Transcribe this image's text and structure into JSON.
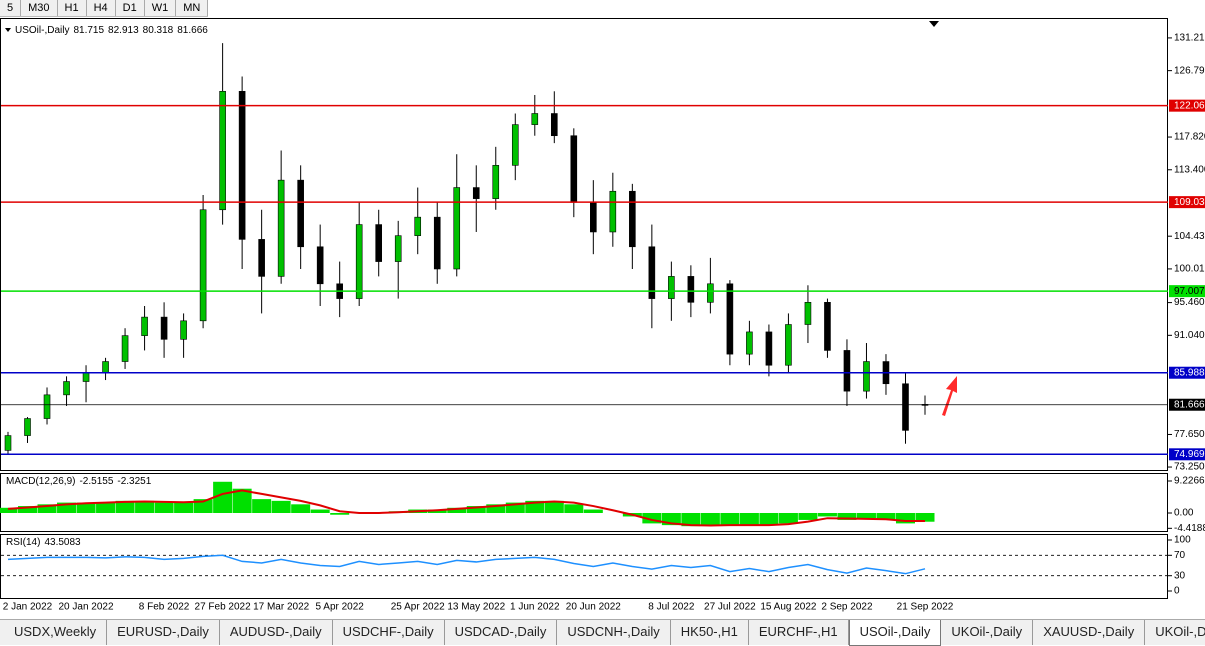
{
  "toolbar": {
    "timeframes": [
      "5",
      "M30",
      "H1",
      "H4",
      "D1",
      "W1",
      "MN"
    ]
  },
  "chart": {
    "type": "candlestick",
    "symbol": "USOil-,Daily",
    "categories": [
      null,
      "2 Jan 2022",
      null,
      null,
      "20 Jan 2022",
      null,
      null,
      null,
      "8 Feb 2022",
      null,
      null,
      "27 Feb 2022",
      null,
      null,
      "17 Mar 2022",
      null,
      null,
      "5 Apr 2022",
      null,
      null,
      null,
      "25 Apr 2022",
      null,
      null,
      "13 May 2022",
      null,
      null,
      "1 Jun 2022",
      null,
      null,
      "20 Jun 2022",
      null,
      null,
      null,
      "8 Jul 2022",
      null,
      null,
      "27 Jul 2022",
      null,
      null,
      "15 Aug 2022",
      null,
      null,
      "2 Sep 2022",
      null,
      null,
      null,
      "21 Sep 2022"
    ],
    "open": [
      75.5,
      77.5,
      79.8,
      83,
      84.8,
      86,
      87.5,
      91,
      93.5,
      90.5,
      93,
      108,
      124,
      104,
      99,
      112,
      103,
      98,
      96,
      106,
      101,
      104.5,
      107,
      100,
      111,
      109.5,
      114,
      119.5,
      121,
      118,
      109,
      105,
      110.5,
      103,
      96,
      99,
      95.5,
      98,
      88.5,
      91.5,
      87,
      92.5,
      95.5,
      89,
      83.5,
      87.5,
      84.5,
      81.715
    ],
    "high": [
      78,
      80,
      84,
      85.5,
      87,
      88,
      92,
      95,
      95.5,
      94,
      110,
      130.5,
      126,
      108,
      116,
      114,
      106,
      101,
      109,
      108,
      106.5,
      111,
      109,
      115.5,
      114,
      116.5,
      121,
      123.5,
      124,
      119,
      112,
      113,
      111.5,
      106,
      101,
      100.5,
      101.5,
      98.5,
      93,
      92.5,
      94,
      97.8,
      96,
      90.5,
      90,
      88.5,
      86,
      82.913
    ],
    "low": [
      74.9,
      76.5,
      79,
      81.5,
      82,
      85,
      86.5,
      89,
      88,
      88,
      92,
      106,
      100,
      94,
      98,
      100,
      95,
      93.5,
      95,
      99,
      96,
      102,
      98,
      99,
      105,
      108,
      112,
      118,
      117,
      107,
      102,
      103,
      100,
      92,
      93,
      93.5,
      94,
      87,
      87,
      85.5,
      86,
      90,
      88,
      81.5,
      82.5,
      83,
      76.4,
      80.318
    ],
    "close": [
      77.5,
      79.8,
      83,
      84.8,
      86,
      87.5,
      91,
      93.5,
      90.5,
      93,
      108,
      124,
      104,
      99,
      112,
      103,
      98,
      96,
      106,
      101,
      104.5,
      107,
      100,
      111,
      109.5,
      114,
      119.5,
      121,
      118,
      109,
      105,
      110.5,
      103,
      96,
      99,
      95.5,
      98,
      88.5,
      91.5,
      87,
      92.5,
      95.5,
      89,
      83.5,
      87.5,
      84.5,
      78.2,
      81.666
    ],
    "up_color": "#00c000",
    "down_color": "#000000",
    "ylim": [
      72.85,
      133.9
    ],
    "yticks": [
      {
        "value": 131.21,
        "label": "131.210"
      },
      {
        "value": 126.79,
        "label": "126.790"
      },
      {
        "value": 117.82,
        "label": "117.820"
      },
      {
        "value": 113.4,
        "label": "113.400"
      },
      {
        "value": 104.43,
        "label": "104.430"
      },
      {
        "value": 100.01,
        "label": "100.010"
      },
      {
        "value": 95.46,
        "label": "95.460"
      },
      {
        "value": 91.04,
        "label": "91.040"
      },
      {
        "value": 77.65,
        "label": "77.650"
      },
      {
        "value": 73.25,
        "label": "73.250"
      }
    ],
    "levels": [
      {
        "price": 122.06,
        "label": "122.060",
        "color": "#e00000",
        "text_color": "#ffffff"
      },
      {
        "price": 109.03,
        "label": "109.030",
        "color": "#e00000",
        "text_color": "#ffffff"
      },
      {
        "price": 97.007,
        "color": "#00e000",
        "text_color": "#000000"
      },
      {
        "price": 85.988,
        "color": "#0000c8",
        "text_color": "#ffffff"
      },
      {
        "price": 74.969,
        "color": "#0000c8",
        "text_color": "#ffffff"
      }
    ]
  },
  "macd": {
    "name": "MACD(12,26,9)",
    "color": "#00e000",
    "signal_color": "#e00000",
    "main": [
      1.5,
      2,
      2.5,
      3,
      3,
      3,
      3.5,
      3.5,
      3,
      3,
      4,
      9,
      7,
      4,
      3.5,
      2.5,
      1,
      -0.5,
      0,
      0,
      0.5,
      1,
      1,
      1.5,
      2,
      2.5,
      3,
      3.5,
      3.5,
      2.5,
      1,
      0,
      -1,
      -3,
      -3.5,
      -3.8,
      -3.5,
      -3.5,
      -3.5,
      -3.5,
      -3,
      -2,
      -1,
      -2,
      -1.5,
      -2,
      -3,
      -2.5155
    ],
    "signal": [
      1.2,
      1.6,
      2,
      2.5,
      2.8,
      3,
      3.2,
      3.3,
      3.2,
      3.1,
      3.3,
      5.5,
      6.5,
      5.5,
      4.5,
      3.5,
      2.2,
      0.5,
      0,
      0,
      0.2,
      0.5,
      0.8,
      1.2,
      1.6,
      2,
      2.5,
      3,
      3.3,
      3,
      2,
      0.8,
      -0.5,
      -2,
      -3,
      -3.5,
      -3.6,
      -3.5,
      -3.5,
      -3.5,
      -3.2,
      -2.5,
      -1.5,
      -1.6,
      -1.7,
      -1.8,
      -2.3,
      -2.3251
    ],
    "ylim": [
      -5.19,
      11.24
    ],
    "yticks": [
      9.2266,
      {
        "value": 0,
        "label": "0.00"
      },
      -4.4188
    ]
  },
  "rsi": {
    "name": "RSI(14)",
    "color": "#1e90ff",
    "values": [
      62,
      64,
      66,
      66,
      66,
      65,
      67,
      66,
      62,
      64,
      68,
      70,
      58,
      55,
      62,
      55,
      50,
      48,
      58,
      52,
      55,
      58,
      52,
      60,
      57,
      62,
      64,
      66,
      62,
      54,
      48,
      55,
      48,
      43,
      50,
      46,
      50,
      38,
      44,
      38,
      46,
      52,
      42,
      35,
      45,
      40,
      34,
      43.5083
    ],
    "ylim": [
      -13.7,
      109.8
    ],
    "yticks": [
      100,
      70,
      30,
      0
    ],
    "levels": [
      70,
      30
    ]
  },
  "tabs": [
    "USDX,Weekly",
    "EURUSD-,Daily",
    "AUDUSD-,Daily",
    "USDCHF-,Daily",
    "USDCAD-,Daily",
    "USDCNH-,Daily",
    "HK50-,H1",
    "EURCHF-,H1",
    "USOil-,Daily",
    "UKOil-,Daily",
    "XAUUSD-,Daily",
    "UKOil-,Da"
  ],
  "active_tab": 8
}
